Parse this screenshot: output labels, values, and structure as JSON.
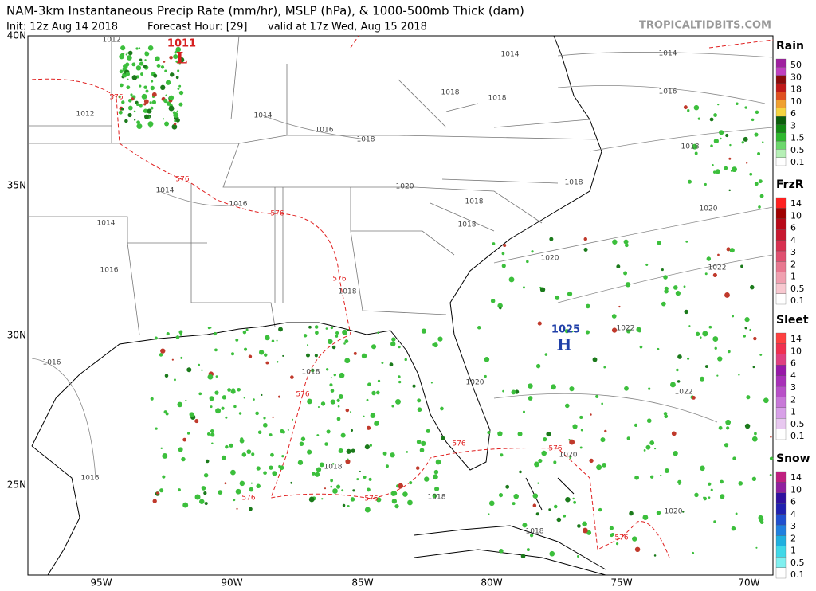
{
  "header": {
    "title": "NAM-3km Instantaneous Precip Rate (mm/hr), MSLP (hPa), & 1000-500mb Thick (dam)",
    "init": "Init: 12z Aug 14 2018",
    "forecast_hour": "Forecast Hour: [29]",
    "valid": "valid at 17z Wed, Aug 15 2018",
    "source": "TROPICALTIDBITS.COM"
  },
  "map": {
    "lat_labels": [
      "40N",
      "35N",
      "30N",
      "25N"
    ],
    "lon_labels": [
      "95W",
      "90W",
      "85W",
      "80W",
      "75W",
      "70W"
    ],
    "pressure_centers": [
      {
        "symbol": "L",
        "value": "1011"
      },
      {
        "symbol": "H",
        "value": "1025"
      }
    ],
    "isobar_labels": [
      "1012",
      "1014",
      "1014",
      "1016",
      "1018",
      "1018",
      "1012",
      "1014",
      "1016",
      "1018",
      "1018",
      "1020",
      "1018",
      "1014",
      "1016",
      "1018",
      "1018",
      "1014",
      "1020",
      "1020",
      "1022",
      "1016",
      "1018",
      "1022",
      "1016",
      "1018",
      "1020",
      "1022",
      "1016",
      "1018",
      "1020",
      "1018",
      "1020",
      "1018"
    ],
    "thickness_labels": [
      "576",
      "576",
      "576",
      "576",
      "576",
      "576",
      "576",
      "576",
      "576",
      "576"
    ]
  },
  "legend": [
    {
      "title": "Rain",
      "labels": [
        "50",
        "30",
        "18",
        "10",
        "6",
        "3",
        "1.5",
        "0.5",
        "0.1"
      ]
    },
    {
      "title": "FrzR",
      "labels": [
        "14",
        "10",
        "6",
        "4",
        "3",
        "2",
        "1",
        "0.5",
        "0.1"
      ]
    },
    {
      "title": "Sleet",
      "labels": [
        "14",
        "10",
        "6",
        "4",
        "3",
        "2",
        "1",
        "0.5",
        "0.1"
      ]
    },
    {
      "title": "Snow",
      "labels": [
        "14",
        "10",
        "6",
        "4",
        "3",
        "2",
        "1",
        "0.5",
        "0.1"
      ]
    }
  ]
}
